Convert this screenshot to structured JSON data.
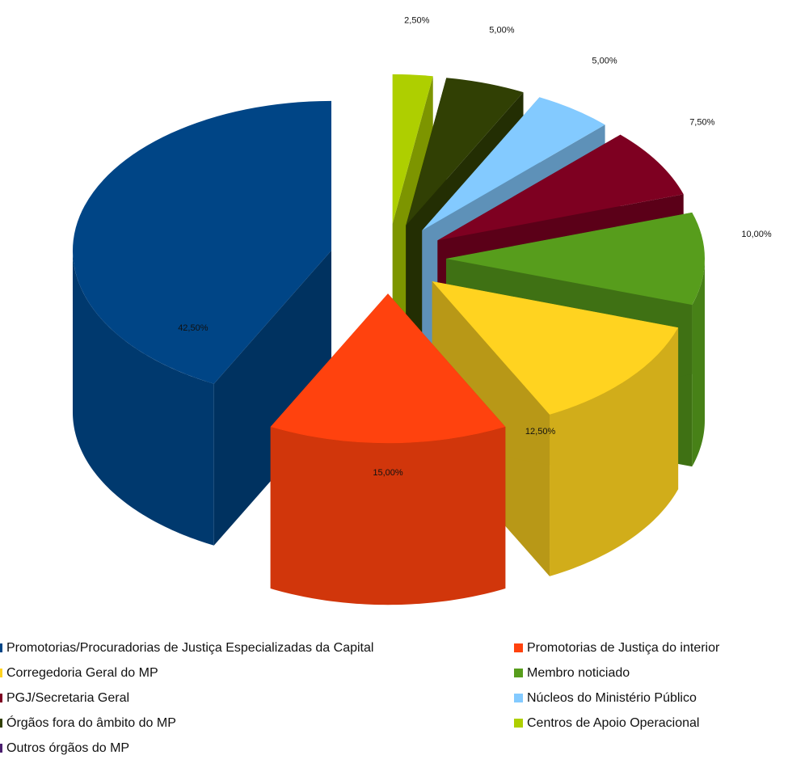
{
  "chart_data": {
    "type": "pie3d",
    "categories": [
      "Promotorias/Procuradorias de Justiça Especializadas da Capital",
      "Promotorias de Justiça do interior",
      "Corregedoria Geral do MP",
      "Membro noticiado",
      "PGJ/Secretaria Geral",
      "Núcleos do Ministério Público",
      "Órgãos fora do âmbito do MP",
      "Centros de Apoio Operacional",
      "Outros órgãos do MP"
    ],
    "values": [
      42.5,
      15,
      12.5,
      10,
      7.5,
      5,
      5,
      2.5,
      0
    ],
    "value_labels": [
      "42,50%",
      "15,00%",
      "12,50%",
      "10,00%",
      "7,50%",
      "5,00%",
      "5,00%",
      "2,50%",
      null
    ],
    "colors": [
      "#004586",
      "#ff420e",
      "#ffd320",
      "#579d1c",
      "#7e0021",
      "#83caff",
      "#314004",
      "#aecf00",
      "#4b1f6f"
    ]
  }
}
